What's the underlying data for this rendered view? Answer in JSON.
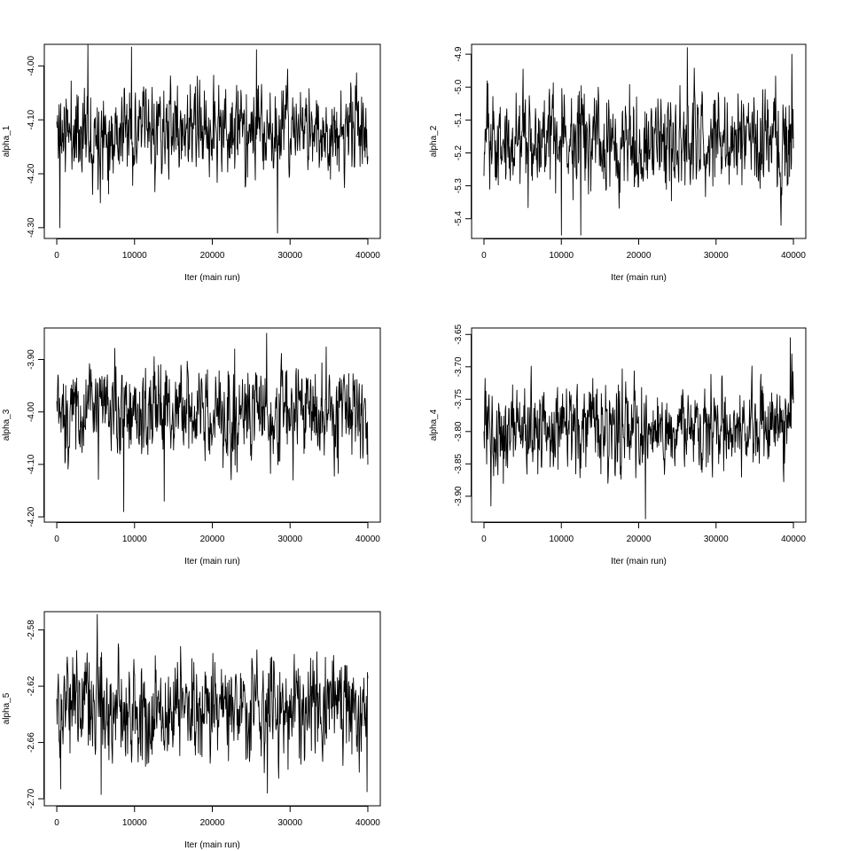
{
  "chart_data": [
    {
      "type": "line",
      "xlabel": "Iter (main run)",
      "ylabel": "alpha_1",
      "xlim": [
        0,
        40000
      ],
      "ylim": [
        -4.32,
        -3.96
      ],
      "xticks": [
        0,
        10000,
        20000,
        30000,
        40000
      ],
      "xtick_labels": [
        "0",
        "10000",
        "20000",
        "30000",
        "40000"
      ],
      "yticks": [
        -4.3,
        -4.2,
        -4.1,
        -4.0
      ],
      "ytick_labels": [
        "-4.30",
        "-4.20",
        "-4.10",
        "-4.00"
      ],
      "trace": {
        "n": 800,
        "mean": -4.12,
        "sd": 0.042,
        "seed": 11,
        "extremes": [
          [
            4000,
            -3.96
          ],
          [
            9600,
            -3.965
          ],
          [
            25700,
            -3.97
          ],
          [
            28400,
            -4.31
          ],
          [
            400,
            -4.3
          ]
        ]
      }
    },
    {
      "type": "line",
      "xlabel": "Iter (main run)",
      "ylabel": "alpha_2",
      "xlim": [
        0,
        40000
      ],
      "ylim": [
        -5.46,
        -4.87
      ],
      "xticks": [
        0,
        10000,
        20000,
        30000,
        40000
      ],
      "xtick_labels": [
        "0",
        "10000",
        "20000",
        "30000",
        "40000"
      ],
      "yticks": [
        -5.4,
        -5.3,
        -5.2,
        -5.1,
        -5.0,
        -4.9
      ],
      "ytick_labels": [
        "-5.4",
        "-5.3",
        "-5.2",
        "-5.1",
        "-5.0",
        "-4.9"
      ],
      "trace": {
        "n": 800,
        "mean": -5.16,
        "sd": 0.075,
        "seed": 23,
        "extremes": [
          [
            26300,
            -4.88
          ],
          [
            39800,
            -4.9
          ],
          [
            10000,
            -5.45
          ],
          [
            12500,
            -5.45
          ],
          [
            38400,
            -5.42
          ]
        ]
      }
    },
    {
      "type": "line",
      "xlabel": "Iter (main run)",
      "ylabel": "alpha_3",
      "xlim": [
        0,
        40000
      ],
      "ylim": [
        -4.21,
        -3.84
      ],
      "xticks": [
        0,
        10000,
        20000,
        30000,
        40000
      ],
      "xtick_labels": [
        "0",
        "10000",
        "20000",
        "30000",
        "40000"
      ],
      "yticks": [
        -4.2,
        -4.1,
        -4.0,
        -3.9
      ],
      "ytick_labels": [
        "-4.20",
        "-4.10",
        "-4.00",
        "-3.90"
      ],
      "trace": {
        "n": 800,
        "mean": -4.0,
        "sd": 0.045,
        "seed": 37,
        "extremes": [
          [
            27000,
            -3.85
          ],
          [
            8600,
            -4.19
          ],
          [
            13800,
            -4.17
          ],
          [
            22900,
            -3.88
          ]
        ]
      }
    },
    {
      "type": "line",
      "xlabel": "Iter (main run)",
      "ylabel": "alpha_4",
      "xlim": [
        0,
        40000
      ],
      "ylim": [
        -3.94,
        -3.64
      ],
      "xticks": [
        0,
        10000,
        20000,
        30000,
        40000
      ],
      "xtick_labels": [
        "0",
        "10000",
        "20000",
        "30000",
        "40000"
      ],
      "yticks": [
        -3.9,
        -3.85,
        -3.8,
        -3.75,
        -3.7,
        -3.65
      ],
      "ytick_labels": [
        "-3.90",
        "-3.85",
        "-3.80",
        "-3.75",
        "-3.70",
        "-3.65"
      ],
      "trace": {
        "n": 800,
        "mean": -3.795,
        "sd": 0.033,
        "seed": 53,
        "extremes": [
          [
            39600,
            -3.655
          ],
          [
            39800,
            -3.68
          ],
          [
            20900,
            -3.935
          ],
          [
            900,
            -3.915
          ]
        ]
      }
    },
    {
      "type": "line",
      "xlabel": "Iter (main run)",
      "ylabel": "alpha_5",
      "xlim": [
        0,
        40000
      ],
      "ylim": [
        -2.705,
        -2.567
      ],
      "xticks": [
        0,
        10000,
        20000,
        30000,
        40000
      ],
      "xtick_labels": [
        "0",
        "10000",
        "20000",
        "30000",
        "40000"
      ],
      "yticks": [
        -2.7,
        -2.66,
        -2.62,
        -2.58
      ],
      "ytick_labels": [
        "-2.70",
        "-2.66",
        "-2.62",
        "-2.58"
      ],
      "trace": {
        "n": 800,
        "mean": -2.635,
        "sd": 0.018,
        "seed": 71,
        "extremes": [
          [
            5200,
            -2.569
          ],
          [
            5700,
            -2.697
          ],
          [
            27100,
            -2.696
          ],
          [
            39900,
            -2.695
          ],
          [
            500,
            -2.693
          ]
        ]
      }
    }
  ]
}
